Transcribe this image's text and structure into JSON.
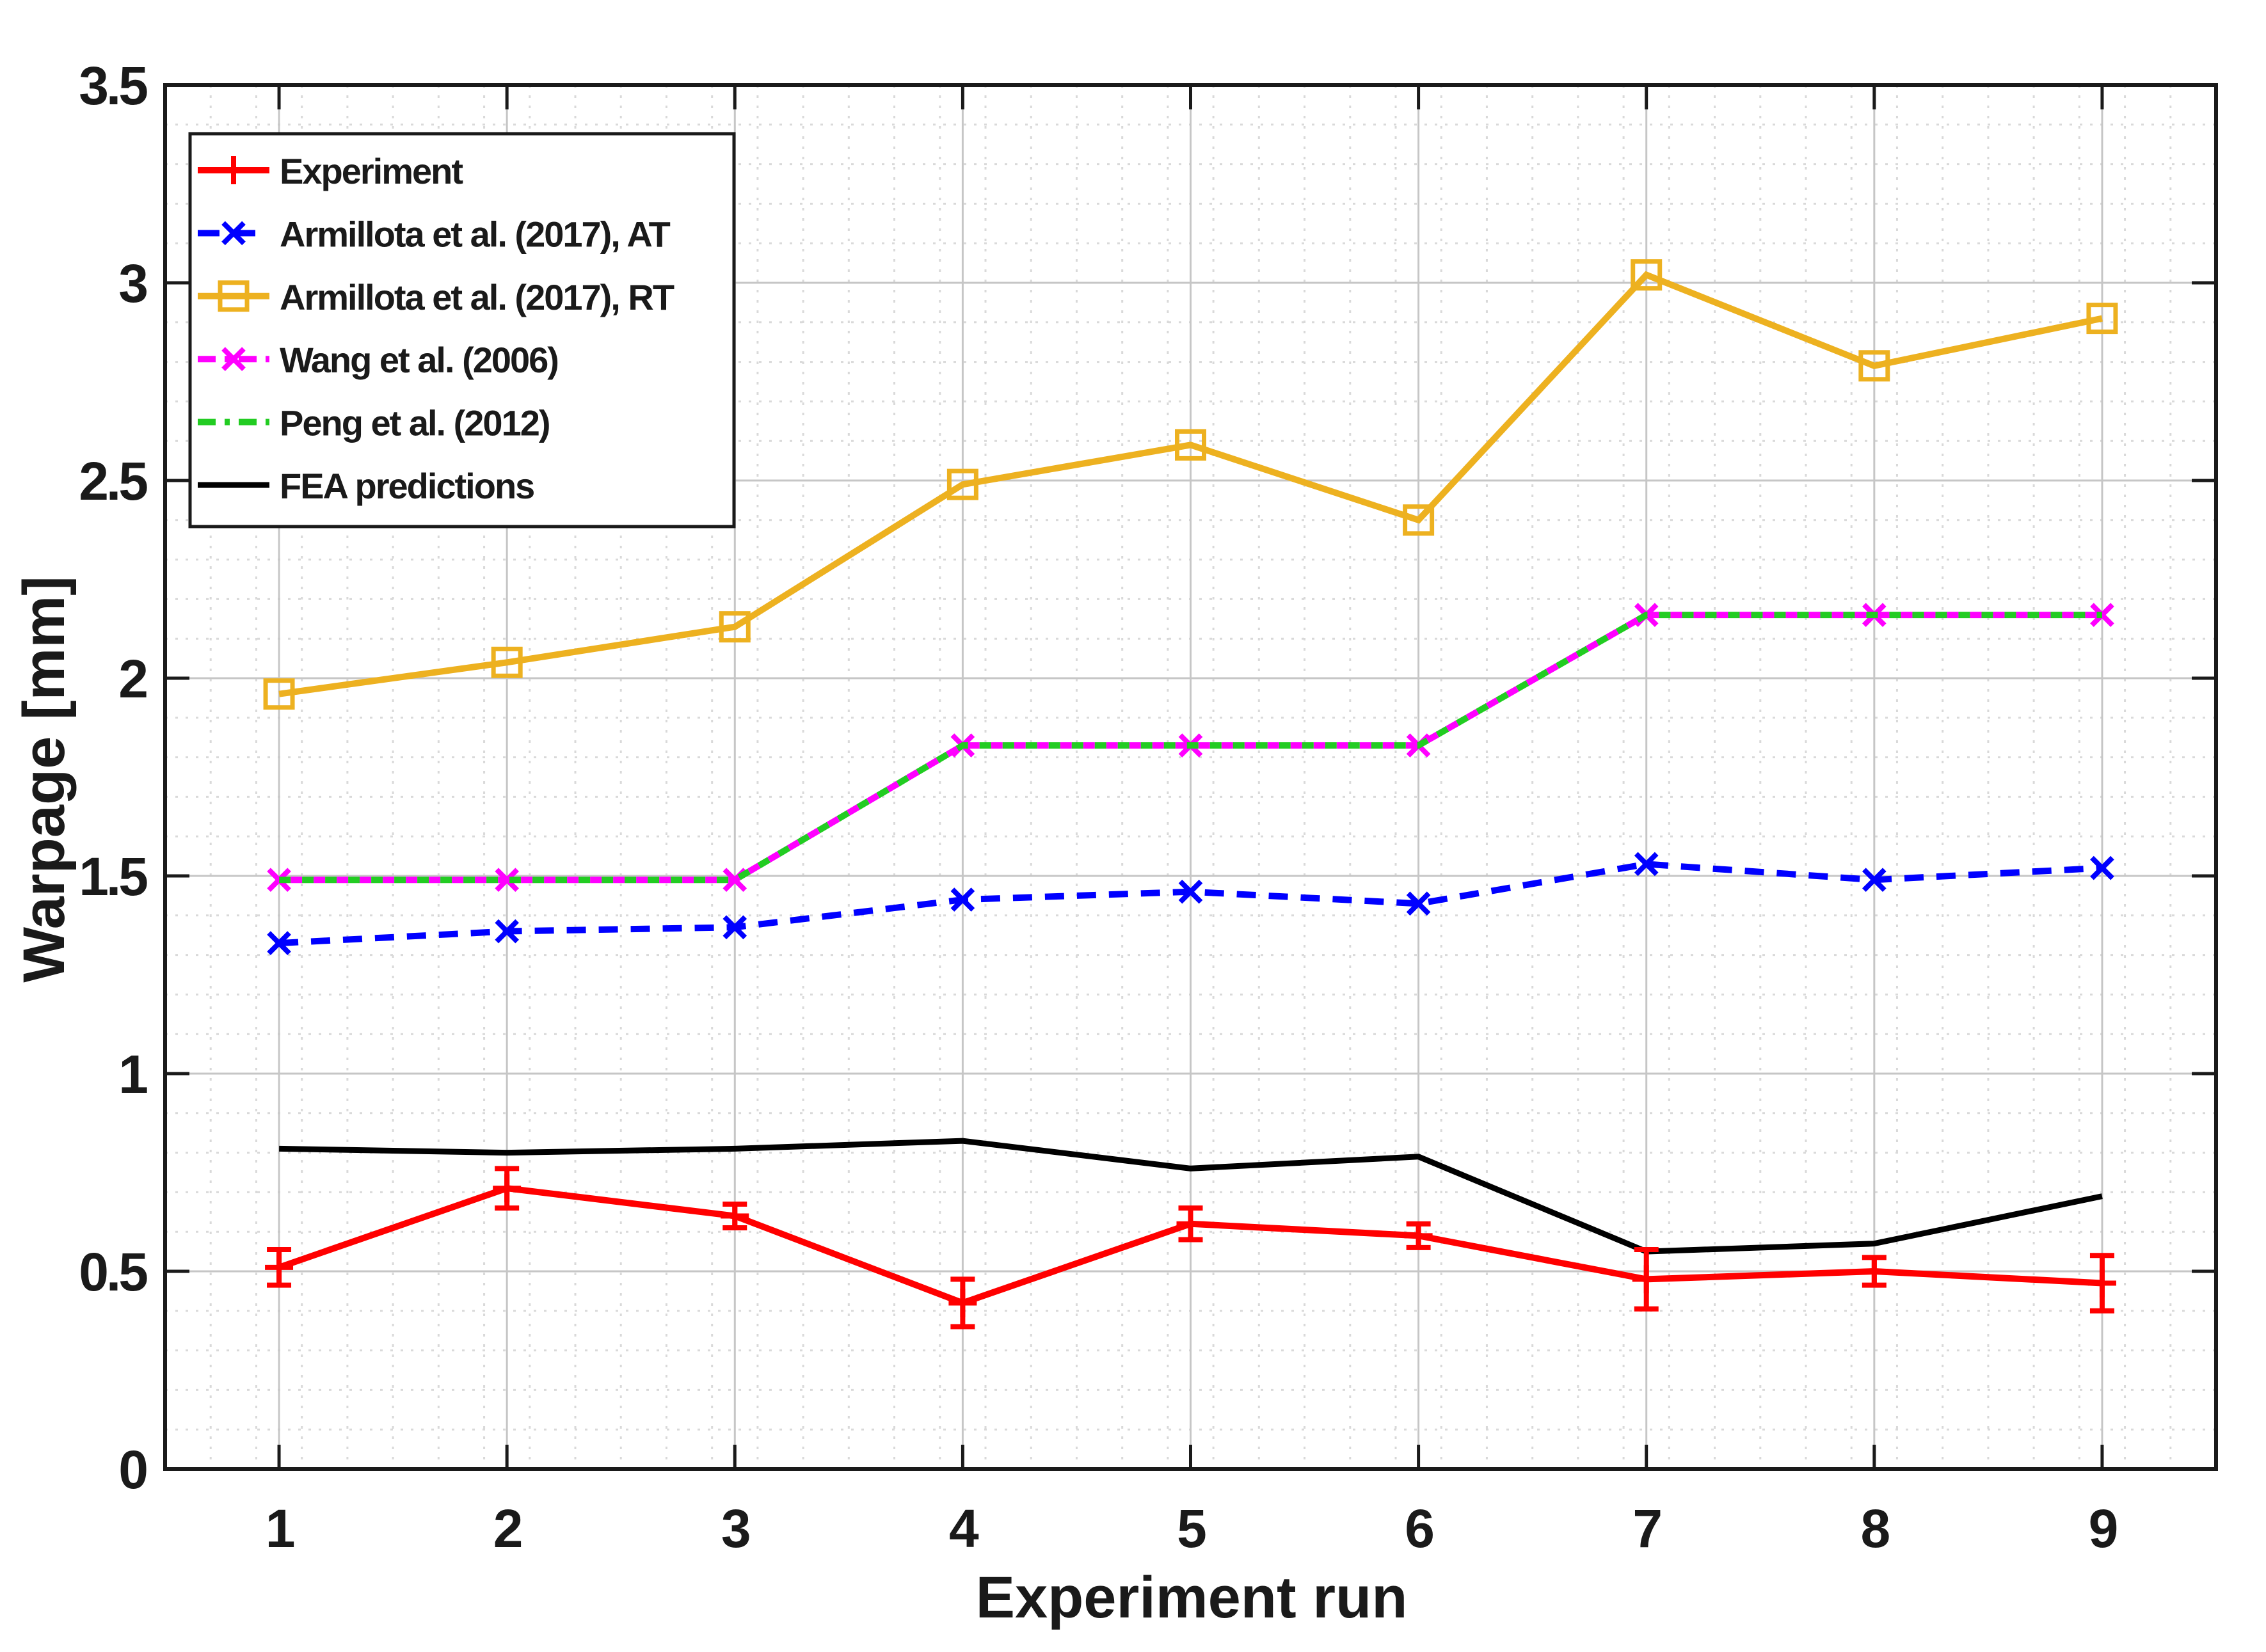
{
  "figure": {
    "background": "#ffffff",
    "plot_area_background": "#ffffff"
  },
  "chart_data": {
    "type": "line",
    "title": "",
    "xlabel": "Experiment run",
    "ylabel": "Warpage [mm]",
    "x": [
      1,
      2,
      3,
      4,
      5,
      6,
      7,
      8,
      9
    ],
    "xlim": [
      0.5,
      9.5
    ],
    "ylim": [
      0,
      3.5
    ],
    "x_ticks": [
      1,
      2,
      3,
      4,
      5,
      6,
      7,
      8,
      9
    ],
    "x_tick_labels": [
      "1",
      "2",
      "3",
      "4",
      "5",
      "6",
      "7",
      "8",
      "9"
    ],
    "y_ticks": [
      0,
      0.5,
      1,
      1.5,
      2,
      2.5,
      3,
      3.5
    ],
    "y_tick_labels": [
      "0",
      "0.5",
      "1",
      "1.5",
      "2",
      "2.5",
      "3",
      "3.5"
    ],
    "grid": {
      "major": true,
      "minor": true,
      "x_minor_step": 0.2,
      "y_minor_step": 0.1
    },
    "legend_position": "top-left",
    "series": [
      {
        "name": "Experiment",
        "color": "#ff0000",
        "line_style": "solid",
        "marker": "plus",
        "values": [
          0.51,
          0.71,
          0.64,
          0.42,
          0.62,
          0.59,
          0.48,
          0.5,
          0.47
        ],
        "error": [
          0.045,
          0.05,
          0.03,
          0.06,
          0.04,
          0.03,
          0.075,
          0.035,
          0.07
        ]
      },
      {
        "name": "Armillota et al. (2017), AT",
        "color": "#0000ff",
        "line_style": "dashed",
        "marker": "x",
        "values": [
          1.33,
          1.36,
          1.37,
          1.44,
          1.46,
          1.43,
          1.53,
          1.49,
          1.52
        ]
      },
      {
        "name": "Armillota et al. (2017), RT",
        "color": "#edb120",
        "line_style": "solid",
        "marker": "square",
        "values": [
          1.96,
          2.04,
          2.13,
          2.49,
          2.59,
          2.4,
          3.02,
          2.79,
          2.91
        ]
      },
      {
        "name": "Wang et al. (2006)",
        "color": "#ff00ff",
        "line_style": "dashdot",
        "marker": "x",
        "values": [
          1.49,
          1.49,
          1.49,
          1.83,
          1.83,
          1.83,
          2.16,
          2.16,
          2.16
        ]
      },
      {
        "name": "Peng et al. (2012)",
        "color": "#22cc22",
        "line_style": "dashdot",
        "marker": "none",
        "values": [
          1.49,
          1.49,
          1.49,
          1.83,
          1.83,
          1.83,
          2.16,
          2.16,
          2.16
        ]
      },
      {
        "name": "FEA predictions",
        "color": "#000000",
        "line_style": "solid",
        "marker": "none",
        "values": [
          0.81,
          0.8,
          0.81,
          0.83,
          0.76,
          0.79,
          0.55,
          0.57,
          0.69
        ]
      }
    ],
    "axis_color": "#1a1a1a",
    "major_grid_color": "#c6c6c6",
    "minor_grid_color": "#d9d9d9"
  }
}
